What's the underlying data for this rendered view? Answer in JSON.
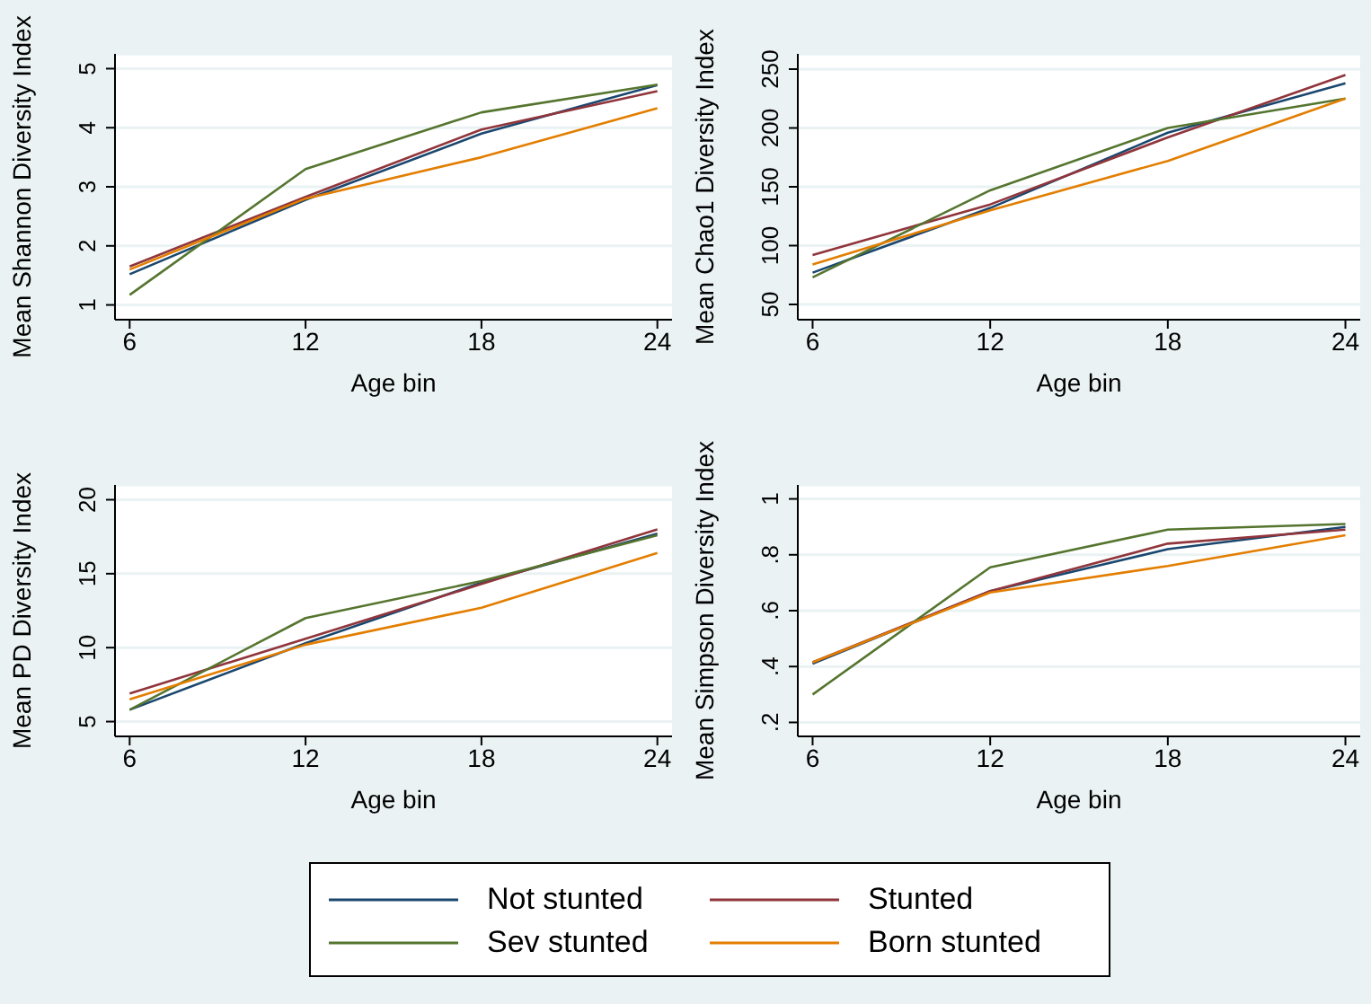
{
  "chart_data": [
    {
      "type": "line",
      "xlabel": "Age bin",
      "ylabel": "Mean Shannon Diversity Index",
      "x": [
        6,
        12,
        18,
        24
      ],
      "xlim": [
        5.5,
        24.5
      ],
      "xticks": [
        6,
        12,
        18,
        24
      ],
      "ylim": [
        0.75,
        5.25
      ],
      "yticks": [
        1,
        2,
        3,
        4,
        5
      ],
      "grid": "y",
      "legend": "bottom",
      "marker": "none",
      "line_style": "solid",
      "series": [
        {
          "name": "Not stunted",
          "color": "#1a476f",
          "values": [
            1.52,
            2.78,
            3.9,
            4.72
          ]
        },
        {
          "name": "Stunted",
          "color": "#90353b",
          "values": [
            1.65,
            2.83,
            3.97,
            4.62
          ]
        },
        {
          "name": "Sev stunted",
          "color": "#55752f",
          "values": [
            1.17,
            3.3,
            4.26,
            4.73
          ]
        },
        {
          "name": "Born stunted",
          "color": "#e37e00",
          "values": [
            1.6,
            2.8,
            3.5,
            4.33
          ]
        }
      ]
    },
    {
      "type": "line",
      "xlabel": "Age bin",
      "ylabel": "Mean Chao1 Diversity Index",
      "x": [
        6,
        12,
        18,
        24
      ],
      "xlim": [
        5.5,
        24.5
      ],
      "xticks": [
        6,
        12,
        18,
        24
      ],
      "ylim": [
        37,
        263
      ],
      "yticks": [
        50,
        100,
        150,
        200,
        250
      ],
      "grid": "y",
      "marker": "none",
      "line_style": "solid",
      "series": [
        {
          "color": "#1a476f",
          "values": [
            77,
            132,
            196,
            238
          ]
        },
        {
          "color": "#90353b",
          "values": [
            92,
            135,
            192,
            245
          ]
        },
        {
          "color": "#55752f",
          "values": [
            73,
            147,
            200,
            225
          ]
        },
        {
          "color": "#e37e00",
          "values": [
            84,
            130,
            172,
            225
          ]
        }
      ]
    },
    {
      "type": "line",
      "xlabel": "Age bin",
      "ylabel": "Mean PD Diversity Index",
      "x": [
        6,
        12,
        18,
        24
      ],
      "xlim": [
        5.5,
        24.5
      ],
      "xticks": [
        6,
        12,
        18,
        24
      ],
      "ylim": [
        4,
        21
      ],
      "yticks": [
        5,
        10,
        15,
        20
      ],
      "grid": "y",
      "marker": "none",
      "line_style": "solid",
      "series": [
        {
          "color": "#1a476f",
          "values": [
            5.8,
            10.3,
            14.4,
            17.7
          ]
        },
        {
          "color": "#90353b",
          "values": [
            6.9,
            10.6,
            14.3,
            18.0
          ]
        },
        {
          "color": "#55752f",
          "values": [
            5.8,
            12.0,
            14.5,
            17.6
          ]
        },
        {
          "color": "#e37e00",
          "values": [
            6.5,
            10.2,
            12.7,
            16.4
          ]
        }
      ]
    },
    {
      "type": "line",
      "xlabel": "Age bin",
      "ylabel": "Mean Simpson Diversity Index",
      "x": [
        6,
        12,
        18,
        24
      ],
      "xlim": [
        5.5,
        24.5
      ],
      "xticks": [
        6,
        12,
        18,
        24
      ],
      "ylim": [
        0.15,
        1.05
      ],
      "yticks": [
        {
          "value": 0.2,
          "label": ".2"
        },
        {
          "value": 0.4,
          "label": ".4"
        },
        {
          "value": 0.6,
          "label": ".6"
        },
        {
          "value": 0.8,
          "label": ".8"
        },
        1
      ],
      "grid": "y",
      "marker": "none",
      "line_style": "solid",
      "series": [
        {
          "color": "#1a476f",
          "values": [
            0.41,
            0.67,
            0.82,
            0.9
          ]
        },
        {
          "color": "#90353b",
          "values": [
            0.415,
            0.67,
            0.84,
            0.89
          ]
        },
        {
          "color": "#55752f",
          "values": [
            0.3,
            0.755,
            0.89,
            0.91
          ]
        },
        {
          "color": "#e37e00",
          "values": [
            0.415,
            0.665,
            0.76,
            0.87
          ]
        }
      ]
    }
  ]
}
